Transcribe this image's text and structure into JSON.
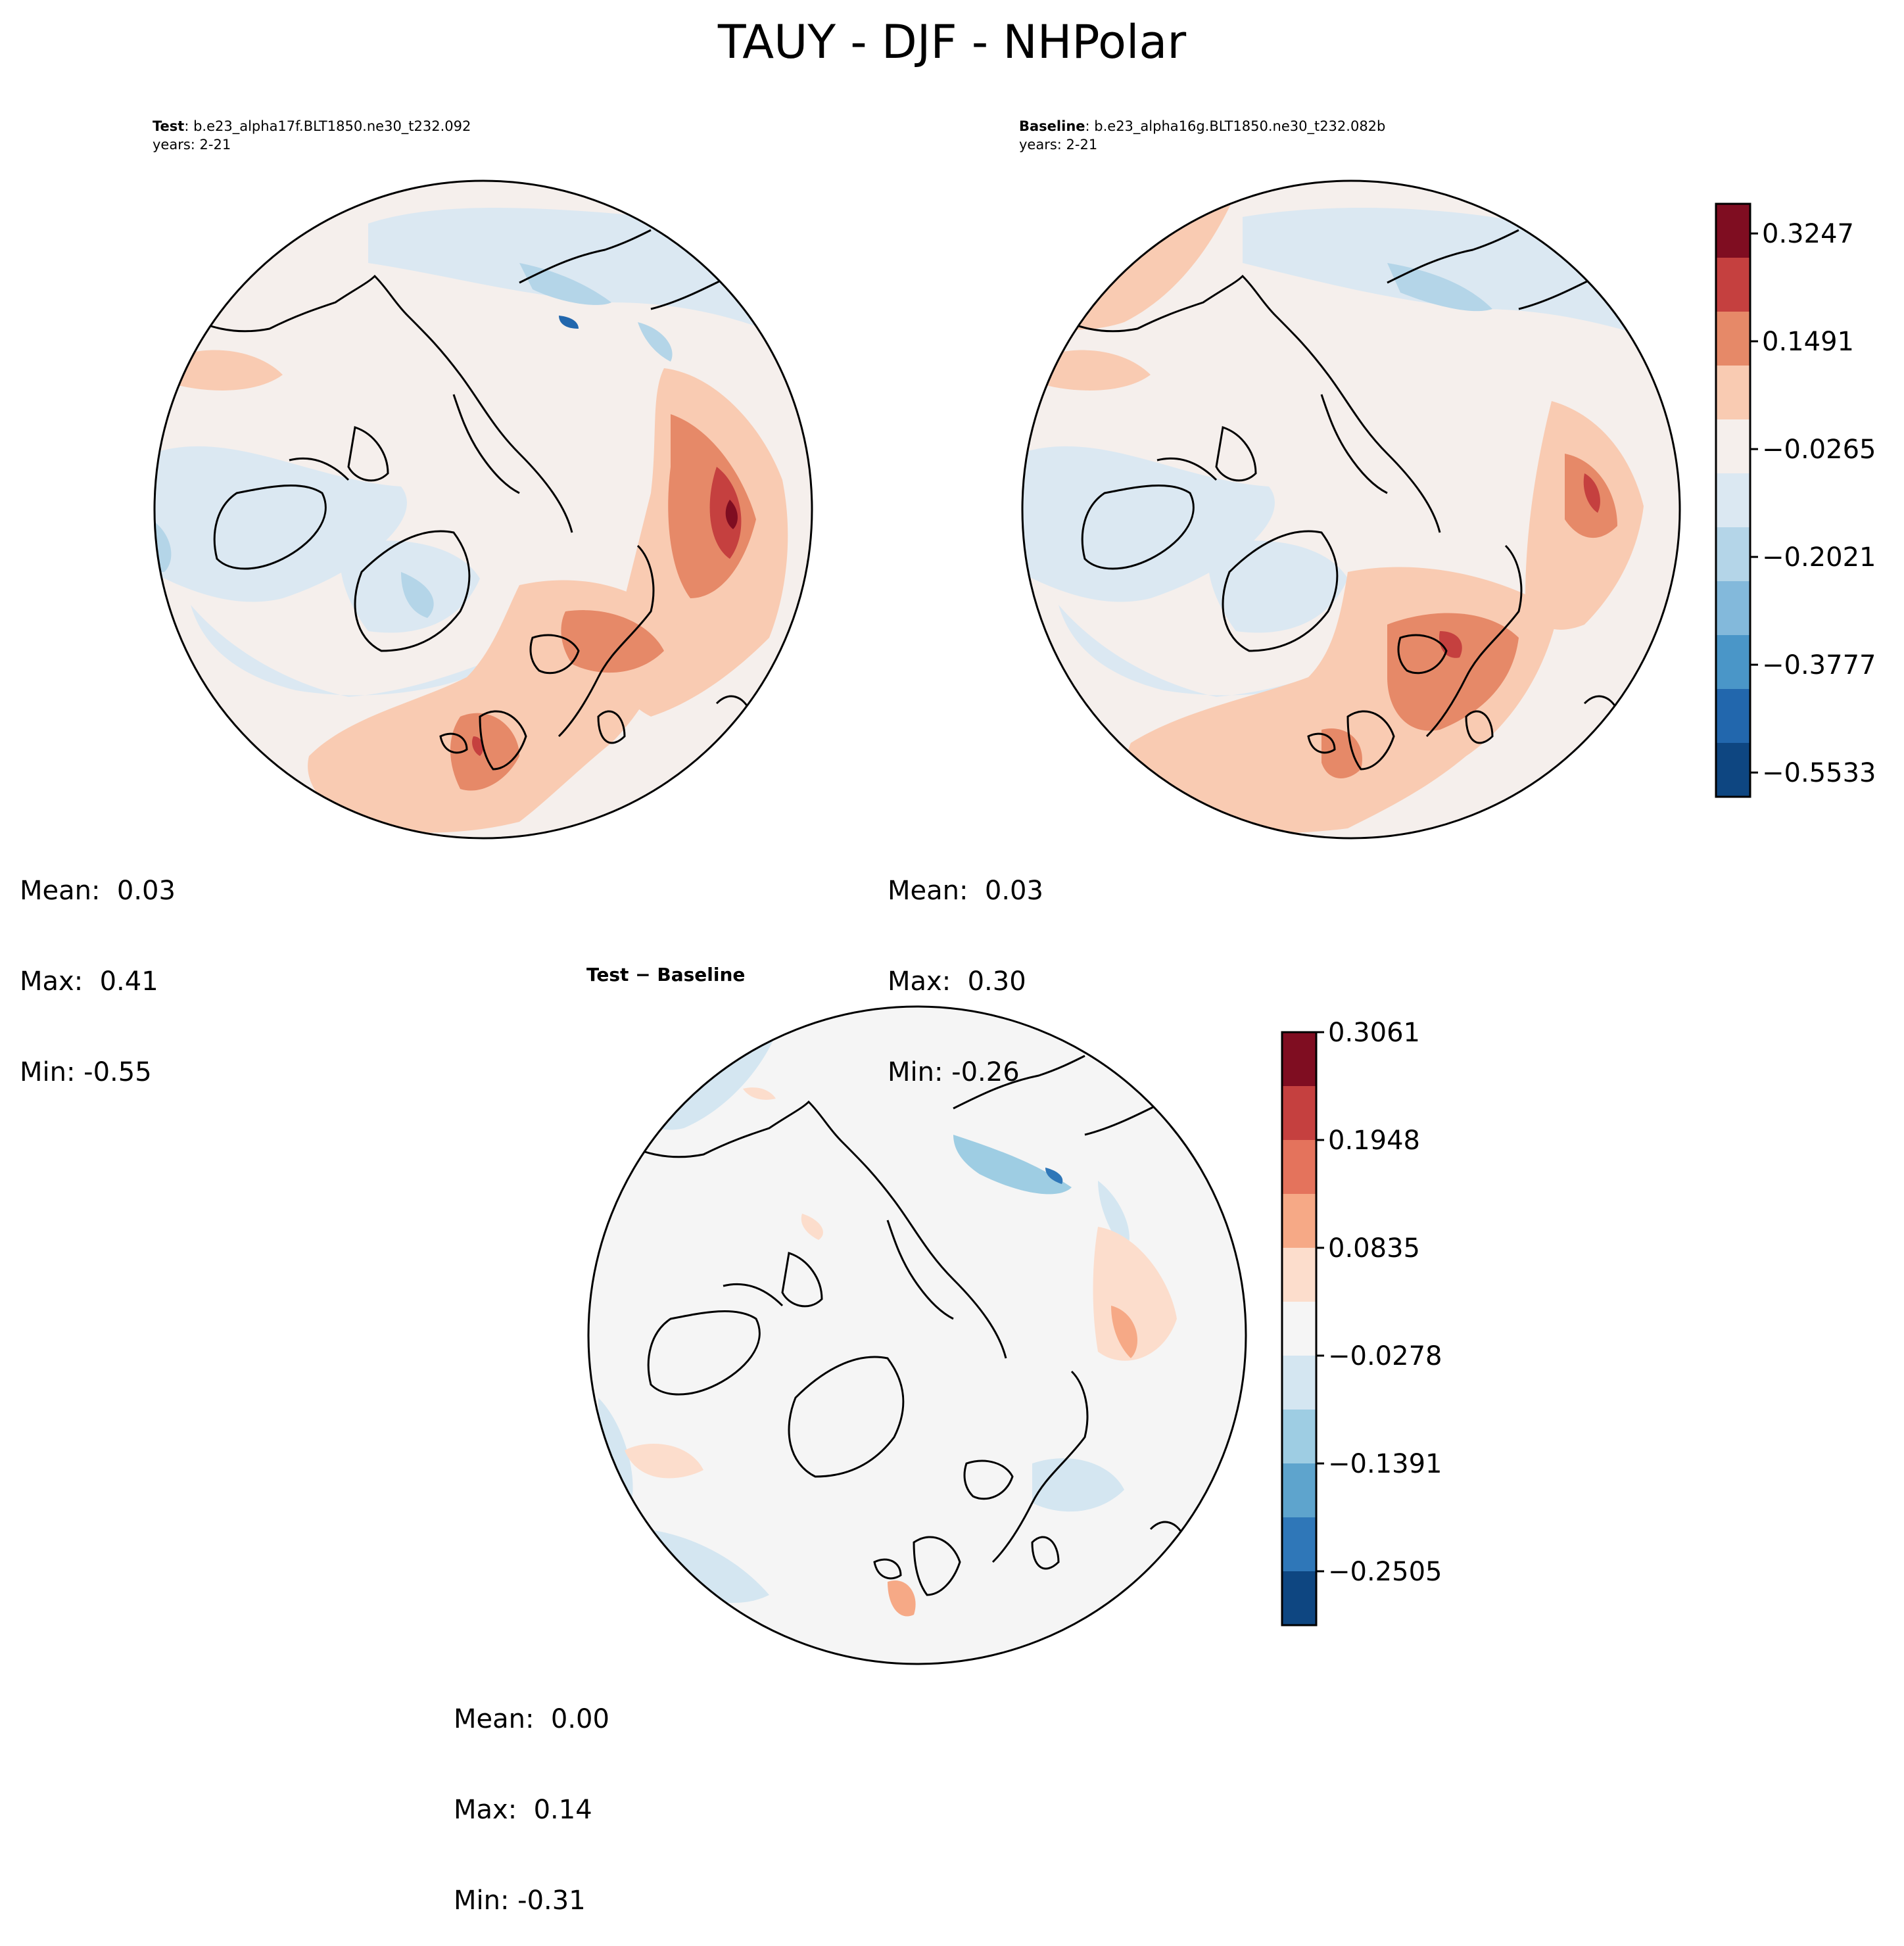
{
  "figure": {
    "title": "TAUY - DJF - NHPolar"
  },
  "panels": {
    "test": {
      "label_bold": "Test",
      "label_rest": ": b.e23_alpha17f.BLT1850.ne30_t232.092",
      "years": "years: 2-21",
      "stats": {
        "mean": "Mean:  0.03",
        "max": "Max:  0.41",
        "min": "Min: -0.55"
      }
    },
    "baseline": {
      "label_bold": "Baseline",
      "label_rest": ": b.e23_alpha16g.BLT1850.ne30_t232.082b",
      "years": "years: 2-21",
      "stats": {
        "mean": "Mean:  0.03",
        "max": "Max:  0.30",
        "min": "Min: -0.26"
      }
    },
    "diff": {
      "label": "Test − Baseline",
      "stats": {
        "mean": "Mean:  0.00",
        "max": "Max:  0.14",
        "min": "Min: -0.31"
      }
    }
  },
  "colorbars": {
    "main": {
      "ticks": [
        "0.3247",
        "0.1491",
        "−0.0265",
        "−0.2021",
        "−0.3777",
        "−0.5533"
      ],
      "colors": [
        "#7f0d21",
        "#c5403f",
        "#e68968",
        "#f9cbb2",
        "#f5efec",
        "#dbe8f2",
        "#b4d5e8",
        "#83b9db",
        "#4a96c8",
        "#2267ad",
        "#0e4681"
      ]
    },
    "diff": {
      "ticks": [
        "0.3061",
        "0.1948",
        "0.0835",
        "−0.0278",
        "−0.1391",
        "−0.2505"
      ],
      "colors": [
        "#7f0d21",
        "#c5403f",
        "#e4735c",
        "#f6a986",
        "#fcddcc",
        "#f5f5f5",
        "#d4e6f1",
        "#9ecde3",
        "#5ea4cd",
        "#2f77b8",
        "#0e4681"
      ]
    }
  },
  "map_colors": {
    "ocean_base": "#f5efec",
    "diff_base": "#f5f5f5",
    "coastline": "#000000"
  }
}
